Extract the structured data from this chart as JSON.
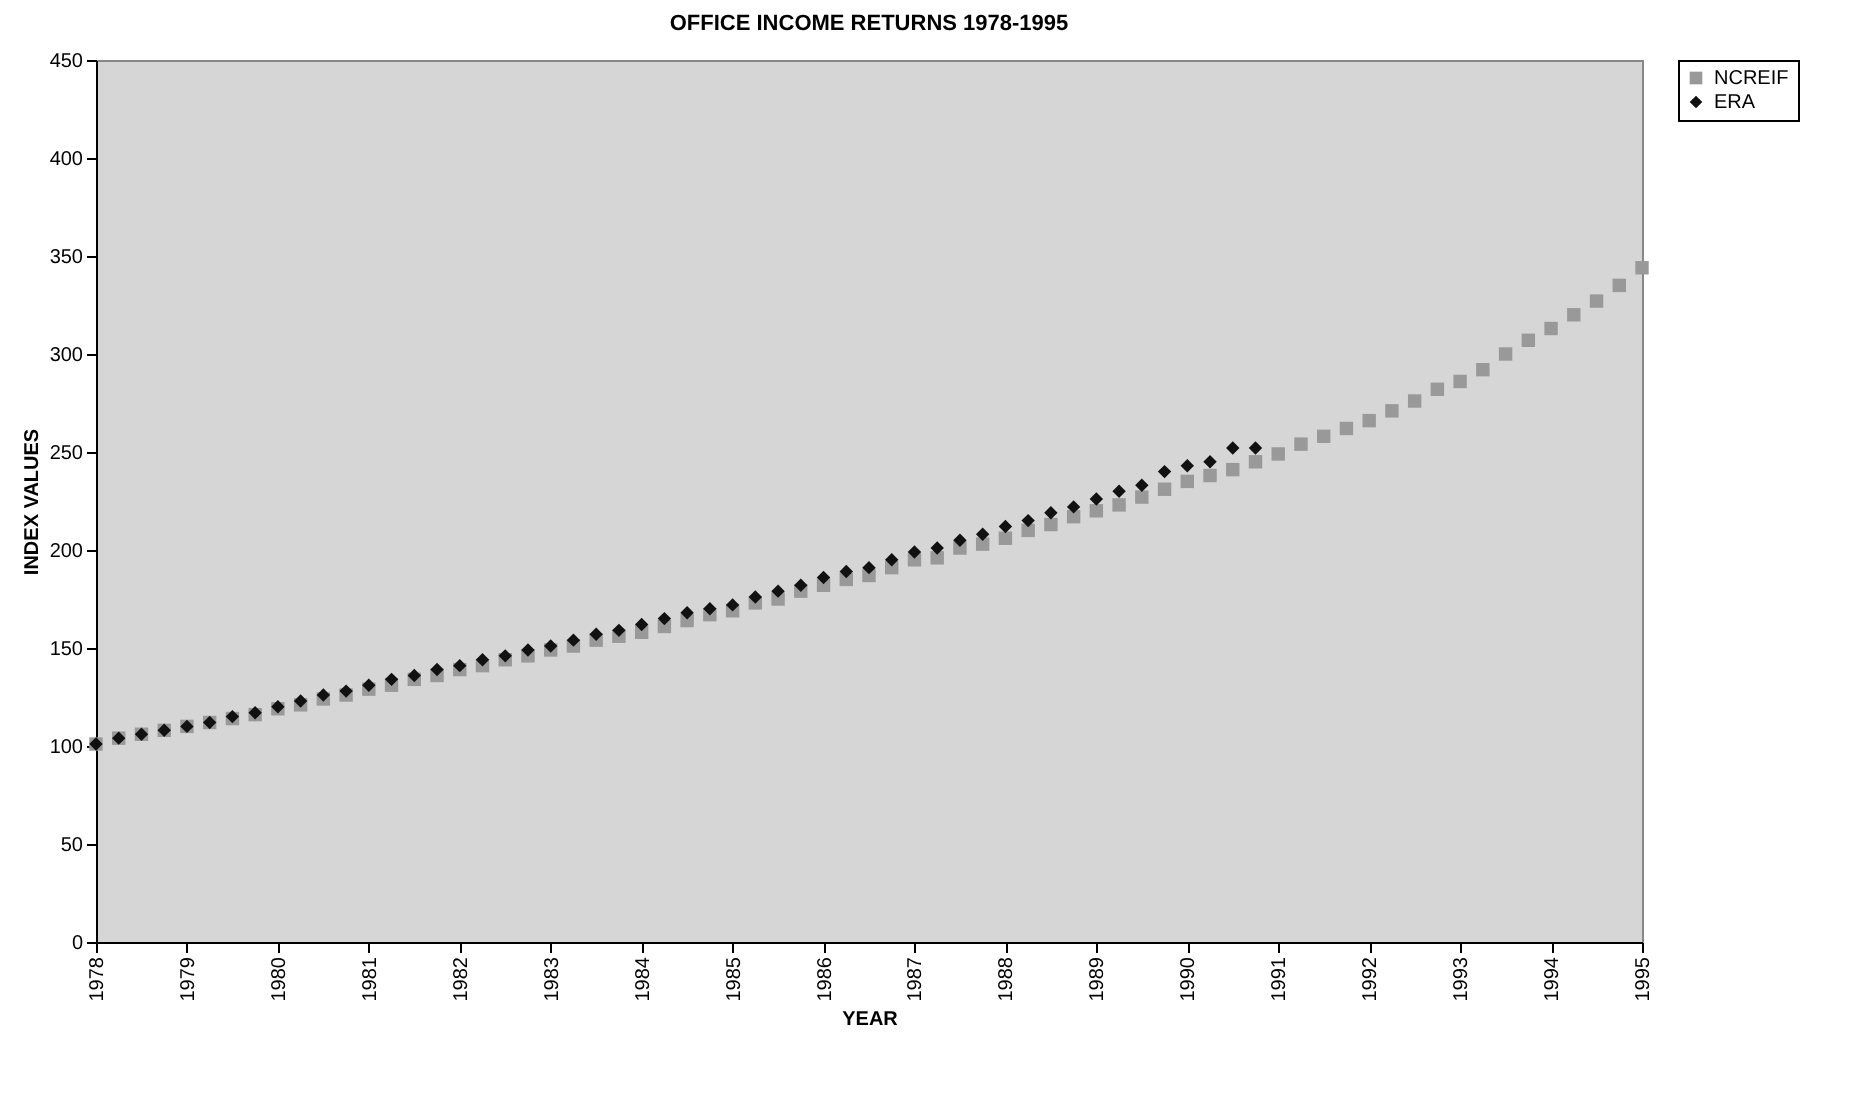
{
  "chart_data": {
    "type": "scatter",
    "title": "OFFICE INCOME RETURNS 1978-1995",
    "xlabel": "YEAR",
    "ylabel": "INDEX VALUES",
    "x": [
      1978,
      1978.25,
      1978.5,
      1978.75,
      1979,
      1979.25,
      1979.5,
      1979.75,
      1980,
      1980.25,
      1980.5,
      1980.75,
      1981,
      1981.25,
      1981.5,
      1981.75,
      1982,
      1982.25,
      1982.5,
      1982.75,
      1983,
      1983.25,
      1983.5,
      1983.75,
      1984,
      1984.25,
      1984.5,
      1984.75,
      1985,
      1985.25,
      1985.5,
      1985.75,
      1986,
      1986.25,
      1986.5,
      1986.75,
      1987,
      1987.25,
      1987.5,
      1987.75,
      1988,
      1988.25,
      1988.5,
      1988.75,
      1989,
      1989.25,
      1989.5,
      1989.75,
      1990,
      1990.25,
      1990.5,
      1990.75,
      1991,
      1991.25,
      1991.5,
      1991.75,
      1992,
      1992.25,
      1992.5,
      1992.75,
      1993,
      1993.25,
      1993.5,
      1993.75,
      1994,
      1994.25,
      1994.5,
      1994.75,
      1995
    ],
    "series": [
      {
        "name": "NCREIF",
        "color": "#999999",
        "marker": "square",
        "values": [
          101,
          104,
          106,
          108,
          110,
          112,
          114,
          116,
          119,
          121,
          124,
          126,
          129,
          131,
          134,
          136,
          139,
          141,
          144,
          146,
          149,
          151,
          154,
          156,
          158,
          161,
          164,
          167,
          169,
          173,
          175,
          179,
          182,
          185,
          187,
          191,
          195,
          196,
          201,
          203,
          206,
          210,
          213,
          217,
          220,
          223,
          227,
          231,
          235,
          238,
          241,
          245,
          249,
          254,
          258,
          262,
          266,
          271,
          276,
          282,
          286,
          292,
          300,
          307,
          313,
          320,
          327,
          335,
          344
        ]
      },
      {
        "name": "ERA",
        "color": "#111111",
        "marker": "diamond",
        "x": [
          1978,
          1978.25,
          1978.5,
          1978.75,
          1979,
          1979.25,
          1979.5,
          1979.75,
          1980,
          1980.25,
          1980.5,
          1980.75,
          1981,
          1981.25,
          1981.5,
          1981.75,
          1982,
          1982.25,
          1982.5,
          1982.75,
          1983,
          1983.25,
          1983.5,
          1983.75,
          1984,
          1984.25,
          1984.5,
          1984.75,
          1985,
          1985.25,
          1985.5,
          1985.75,
          1986,
          1986.25,
          1986.5,
          1986.75,
          1987,
          1987.25,
          1987.5,
          1987.75,
          1988,
          1988.25,
          1988.5,
          1988.75,
          1989,
          1989.25,
          1989.5,
          1989.75,
          1990,
          1990.25,
          1990.5,
          1990.75
        ],
        "values": [
          101,
          104,
          106,
          108,
          110,
          112,
          115,
          117,
          120,
          123,
          126,
          128,
          131,
          134,
          136,
          139,
          141,
          144,
          146,
          149,
          151,
          154,
          157,
          159,
          162,
          165,
          168,
          170,
          172,
          176,
          179,
          182,
          186,
          189,
          191,
          195,
          199,
          201,
          205,
          208,
          212,
          215,
          219,
          222,
          226,
          230,
          233,
          240,
          243,
          245,
          252,
          252
        ]
      }
    ],
    "xlim": [
      1978,
      1995
    ],
    "xticks": [
      1978,
      1979,
      1980,
      1981,
      1982,
      1983,
      1984,
      1985,
      1986,
      1987,
      1988,
      1989,
      1990,
      1991,
      1992,
      1993,
      1994,
      1995
    ],
    "ylim": [
      0,
      450
    ],
    "yticks": [
      0,
      50,
      100,
      150,
      200,
      250,
      300,
      350,
      400,
      450
    ],
    "legend": "right"
  }
}
